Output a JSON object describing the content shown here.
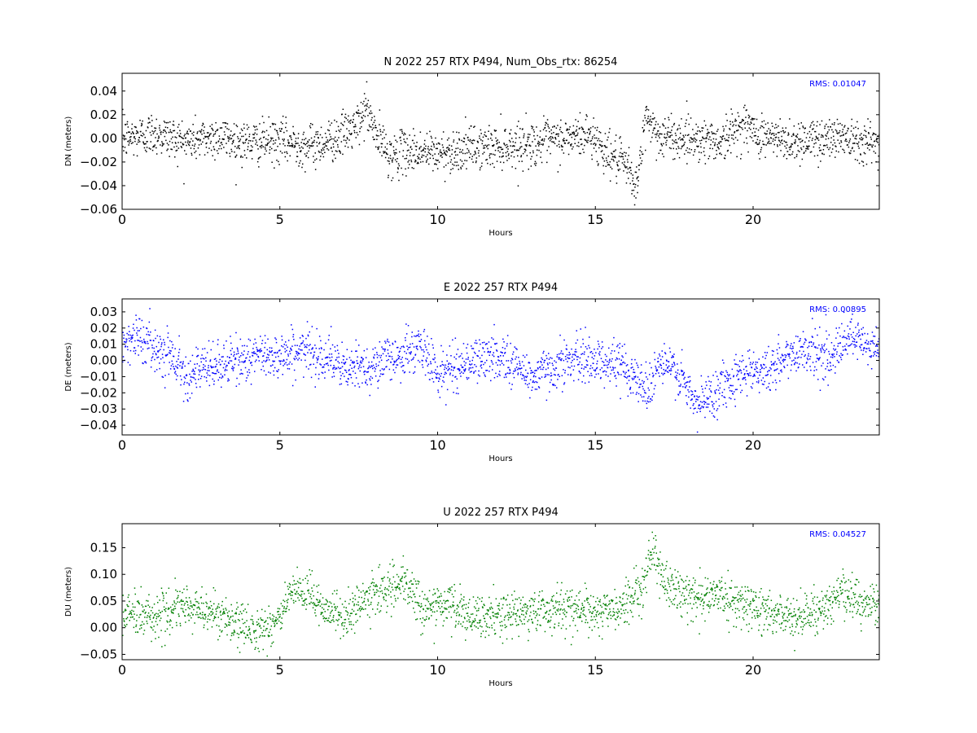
{
  "chart_data": [
    {
      "type": "scatter",
      "title": "N 2022 257 RTX  P494, Num_Obs_rtx: 86254",
      "xlabel": "Hours",
      "ylabel": "DN (meters)",
      "xlim": [
        0,
        24
      ],
      "ylim": [
        -0.06,
        0.055
      ],
      "xticks": [
        0,
        5,
        10,
        15,
        20
      ],
      "xtick_labels": [
        "0",
        "5",
        "10",
        "15",
        "20"
      ],
      "yticks": [
        -0.06,
        -0.04,
        -0.02,
        0.0,
        0.02,
        0.04
      ],
      "ytick_labels": [
        "−0.06",
        "−0.04",
        "−0.02",
        "0.00",
        "0.02",
        "0.04"
      ],
      "annotation": "RMS:  0.01047",
      "series": [
        {
          "color": "#000000",
          "trend": [
            [
              0,
              0.0
            ],
            [
              1,
              0.005
            ],
            [
              2,
              -0.002
            ],
            [
              3,
              0.002
            ],
            [
              4,
              -0.003
            ],
            [
              5,
              -0.002
            ],
            [
              6,
              -0.006
            ],
            [
              6.8,
              0.001
            ],
            [
              7.5,
              0.012
            ],
            [
              7.7,
              0.028
            ],
            [
              8.0,
              0.005
            ],
            [
              8.5,
              -0.015
            ],
            [
              9,
              -0.01
            ],
            [
              10,
              -0.012
            ],
            [
              11,
              -0.008
            ],
            [
              12,
              -0.006
            ],
            [
              13,
              -0.004
            ],
            [
              14,
              0.0
            ],
            [
              14.8,
              0.004
            ],
            [
              15.3,
              -0.01
            ],
            [
              16,
              -0.025
            ],
            [
              16.3,
              -0.04
            ],
            [
              16.6,
              0.02
            ],
            [
              17,
              0.002
            ],
            [
              18,
              0.001
            ],
            [
              19,
              -0.002
            ],
            [
              19.7,
              0.014
            ],
            [
              20,
              0.005
            ],
            [
              21,
              -0.002
            ],
            [
              22,
              0.0
            ],
            [
              23,
              0.003
            ],
            [
              24,
              -0.006
            ]
          ],
          "spread": 0.009
        }
      ]
    },
    {
      "type": "scatter",
      "title": "E 2022 257 RTX  P494",
      "xlabel": "Hours",
      "ylabel": "DE (meters)",
      "xlim": [
        0,
        24
      ],
      "ylim": [
        -0.046,
        0.038
      ],
      "xticks": [
        0,
        5,
        10,
        15,
        20
      ],
      "xtick_labels": [
        "0",
        "5",
        "10",
        "15",
        "20"
      ],
      "yticks": [
        -0.04,
        -0.03,
        -0.02,
        -0.01,
        0.0,
        0.01,
        0.02,
        0.03
      ],
      "ytick_labels": [
        "−0.04",
        "−0.03",
        "−0.02",
        "−0.01",
        "0.00",
        "0.01",
        "0.02",
        "0.03"
      ],
      "annotation": "RMS:  0.00895",
      "series": [
        {
          "color": "#0000ff",
          "trend": [
            [
              0,
              0.012
            ],
            [
              0.5,
              0.015
            ],
            [
              1,
              0.008
            ],
            [
              1.5,
              0.005
            ],
            [
              2,
              -0.008
            ],
            [
              3,
              -0.003
            ],
            [
              4,
              0.002
            ],
            [
              5,
              0.004
            ],
            [
              5.8,
              0.006
            ],
            [
              6.5,
              0.003
            ],
            [
              7,
              -0.006
            ],
            [
              8,
              -0.002
            ],
            [
              9,
              0.005
            ],
            [
              9.5,
              0.008
            ],
            [
              10,
              -0.008
            ],
            [
              11,
              0.0
            ],
            [
              12,
              0.003
            ],
            [
              13,
              -0.01
            ],
            [
              14,
              0.0
            ],
            [
              15,
              0.001
            ],
            [
              16,
              -0.004
            ],
            [
              16.6,
              -0.018
            ],
            [
              17,
              -0.002
            ],
            [
              17.5,
              -0.005
            ],
            [
              18.2,
              -0.028
            ],
            [
              19,
              -0.015
            ],
            [
              19.8,
              -0.005
            ],
            [
              20.5,
              -0.006
            ],
            [
              21.5,
              0.008
            ],
            [
              22.5,
              0.002
            ],
            [
              23,
              0.014
            ],
            [
              24,
              0.006
            ]
          ],
          "spread": 0.007
        }
      ]
    },
    {
      "type": "scatter",
      "title": "U 2022 257 RTX  P494",
      "xlabel": "Hours",
      "ylabel": "DU (meters)",
      "xlim": [
        0,
        24
      ],
      "ylim": [
        -0.06,
        0.195
      ],
      "xticks": [
        0,
        5,
        10,
        15,
        20
      ],
      "xtick_labels": [
        "0",
        "5",
        "10",
        "15",
        "20"
      ],
      "yticks": [
        -0.05,
        0.0,
        0.05,
        0.1,
        0.15
      ],
      "ytick_labels": [
        "−0.05",
        "0.00",
        "0.05",
        "0.10",
        "0.15"
      ],
      "annotation": "RMS:  0.04527",
      "series": [
        {
          "color": "#008000",
          "trend": [
            [
              0,
              0.03
            ],
            [
              1,
              0.025
            ],
            [
              1.5,
              0.03
            ],
            [
              2,
              0.04
            ],
            [
              3,
              0.03
            ],
            [
              3.5,
              0.005
            ],
            [
              4.5,
              0.0
            ],
            [
              5,
              0.02
            ],
            [
              5.3,
              0.065
            ],
            [
              6,
              0.06
            ],
            [
              6.5,
              0.035
            ],
            [
              7,
              0.02
            ],
            [
              7.5,
              0.04
            ],
            [
              8,
              0.07
            ],
            [
              9,
              0.08
            ],
            [
              9.5,
              0.04
            ],
            [
              10,
              0.04
            ],
            [
              10.5,
              0.045
            ],
            [
              11,
              0.015
            ],
            [
              12,
              0.025
            ],
            [
              13,
              0.03
            ],
            [
              14,
              0.04
            ],
            [
              15,
              0.03
            ],
            [
              16,
              0.04
            ],
            [
              16.5,
              0.09
            ],
            [
              16.8,
              0.15
            ],
            [
              17.2,
              0.08
            ],
            [
              18,
              0.06
            ],
            [
              19,
              0.06
            ],
            [
              20,
              0.04
            ],
            [
              21,
              0.02
            ],
            [
              22,
              0.03
            ],
            [
              22.8,
              0.07
            ],
            [
              23.5,
              0.04
            ],
            [
              24,
              0.05
            ]
          ],
          "spread": 0.02
        }
      ]
    }
  ]
}
